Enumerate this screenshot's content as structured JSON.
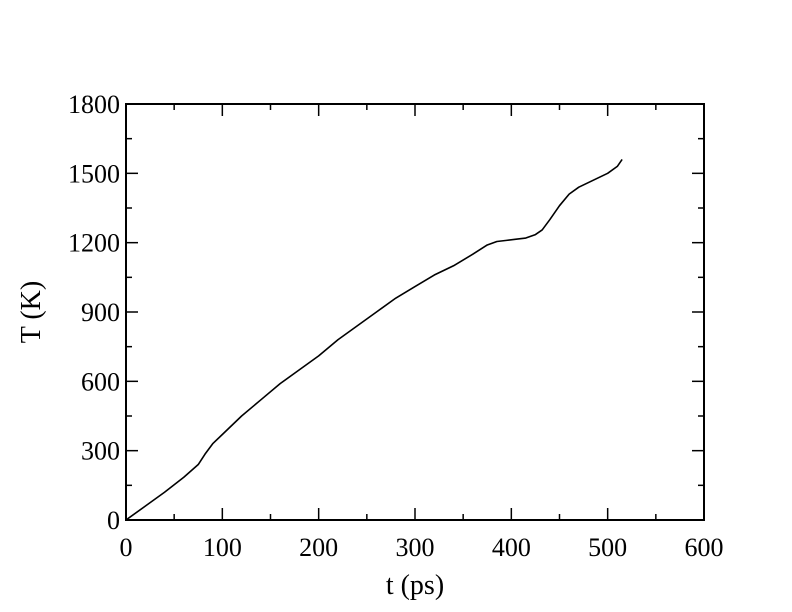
{
  "chart_data": {
    "type": "line",
    "title": "",
    "xlabel": "t (ps)",
    "ylabel": "T (K)",
    "xlim": [
      0,
      600
    ],
    "ylim": [
      0,
      1800
    ],
    "xticks": [
      0,
      100,
      200,
      300,
      400,
      500,
      600
    ],
    "yticks": [
      0,
      300,
      600,
      900,
      1200,
      1500,
      1800
    ],
    "xtick_labels": [
      "0",
      "100",
      "200",
      "300",
      "400",
      "500",
      "600"
    ],
    "ytick_labels": [
      "0",
      "300",
      "600",
      "900",
      "1200",
      "1500",
      "1800"
    ],
    "minor_ticks": true,
    "grid": false,
    "legend": "none",
    "line_color": "#000000",
    "series": [
      {
        "x": [
          0,
          20,
          40,
          60,
          75,
          82,
          90,
          100,
          120,
          140,
          160,
          180,
          200,
          220,
          240,
          260,
          280,
          300,
          320,
          340,
          360,
          375,
          385,
          395,
          405,
          415,
          425,
          432,
          440,
          450,
          460,
          470,
          480,
          490,
          500,
          510,
          515
        ],
        "y": [
          0,
          60,
          120,
          185,
          240,
          285,
          330,
          370,
          450,
          520,
          590,
          650,
          710,
          780,
          840,
          900,
          960,
          1010,
          1060,
          1100,
          1150,
          1190,
          1205,
          1210,
          1215,
          1220,
          1235,
          1255,
          1300,
          1360,
          1410,
          1440,
          1460,
          1480,
          1500,
          1530,
          1560
        ]
      }
    ]
  }
}
